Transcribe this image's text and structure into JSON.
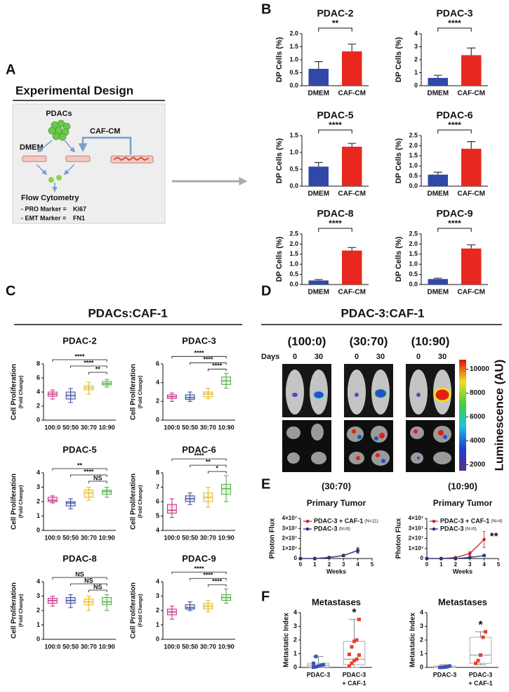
{
  "figure": {
    "panel_labels": [
      "A",
      "B",
      "C",
      "D",
      "E",
      "F"
    ],
    "panel_a": {
      "title": "Experimental Design",
      "pdacs": "PDACs",
      "dmem": "DMEM",
      "caf_cm": "CAF-CM",
      "flow": "Flow Cytometry",
      "markers": [
        {
          "label": "- PRO Marker = ",
          "value": "Ki67"
        },
        {
          "label": "- EMT Marker = ",
          "value": "FN1"
        }
      ]
    },
    "panel_c_title": "PDACs:CAF-1",
    "panel_d": {
      "title": "PDAC-3:CAF-1",
      "days_label": "Days",
      "groups": [
        {
          "label": "(100:0)",
          "days": [
            "0",
            "30"
          ]
        },
        {
          "label": "(30:70)",
          "days": [
            "0",
            "30"
          ]
        },
        {
          "label": "(10:90)",
          "days": [
            "0",
            "30"
          ]
        }
      ],
      "colorbar": {
        "label": "Luminescence (AU)",
        "lim": [
          1500,
          10800
        ],
        "ticks": [
          2000,
          4000,
          6000,
          8000,
          10000
        ]
      }
    }
  },
  "chart_data": [
    {
      "type": "bar",
      "title": "PDAC-2",
      "ylabel": "DP Cells (%)",
      "categories": [
        "DMEM",
        "CAF-CM"
      ],
      "values": [
        0.65,
        1.32
      ],
      "errors": [
        0.28,
        0.28
      ],
      "colors": [
        "#3048a8",
        "#e8281e"
      ],
      "ylim": [
        0,
        2
      ],
      "yticks": [
        {
          "value": 0,
          "label": "0.0"
        },
        {
          "value": 0.5,
          "label": "0.5"
        },
        {
          "value": 1,
          "label": "1.0"
        },
        {
          "value": 1.5,
          "label": "1.5"
        },
        {
          "value": 2,
          "label": "2.0"
        }
      ],
      "significance": "**"
    },
    {
      "type": "bar",
      "title": "PDAC-3",
      "ylabel": "DP Cells (%)",
      "categories": [
        "DMEM",
        "CAF-CM"
      ],
      "values": [
        0.6,
        2.35
      ],
      "errors": [
        0.2,
        0.55
      ],
      "colors": [
        "#3048a8",
        "#e8281e"
      ],
      "ylim": [
        0,
        4
      ],
      "yticks": [
        0,
        1,
        2,
        3,
        4
      ],
      "significance": "****"
    },
    {
      "type": "bar",
      "title": "PDAC-5",
      "ylabel": "DP Cells (%)",
      "categories": [
        "DMEM",
        "CAF-CM"
      ],
      "values": [
        0.58,
        1.17
      ],
      "errors": [
        0.12,
        0.1
      ],
      "colors": [
        "#3048a8",
        "#e8281e"
      ],
      "ylim": [
        0,
        1.5
      ],
      "yticks": [
        {
          "value": 0,
          "label": "0.0"
        },
        {
          "value": 0.5,
          "label": "0.5"
        },
        {
          "value": 1,
          "label": "1.0"
        },
        {
          "value": 1.5,
          "label": "1.5"
        }
      ],
      "significance": "****"
    },
    {
      "type": "bar",
      "title": "PDAC-6",
      "ylabel": "DP Cells (%)",
      "categories": [
        "DMEM",
        "CAF-CM"
      ],
      "values": [
        0.57,
        1.85
      ],
      "errors": [
        0.12,
        0.35
      ],
      "colors": [
        "#3048a8",
        "#e8281e"
      ],
      "ylim": [
        0,
        2.5
      ],
      "yticks": [
        {
          "value": 0,
          "label": "0.0"
        },
        {
          "value": 0.5,
          "label": "0.5"
        },
        {
          "value": 1,
          "label": "1.0"
        },
        {
          "value": 1.5,
          "label": "1.5"
        },
        {
          "value": 2,
          "label": "2.0"
        },
        {
          "value": 2.5,
          "label": "2.5"
        }
      ],
      "significance": "****"
    },
    {
      "type": "bar",
      "title": "PDAC-8",
      "ylabel": "DP Cells (%)",
      "categories": [
        "DMEM",
        "CAF-CM"
      ],
      "values": [
        0.2,
        1.68
      ],
      "errors": [
        0.05,
        0.15
      ],
      "colors": [
        "#3048a8",
        "#e8281e"
      ],
      "ylim": [
        0,
        2.5
      ],
      "yticks": [
        {
          "value": 0,
          "label": "0.0"
        },
        {
          "value": 0.5,
          "label": "0.5"
        },
        {
          "value": 1,
          "label": "1.0"
        },
        {
          "value": 1.5,
          "label": "1.5"
        },
        {
          "value": 2,
          "label": "2.0"
        },
        {
          "value": 2.5,
          "label": "2.5"
        }
      ],
      "significance": "****"
    },
    {
      "type": "bar",
      "title": "PDAC-9",
      "ylabel": "DP Cells (%)",
      "categories": [
        "DMEM",
        "CAF-CM"
      ],
      "values": [
        0.27,
        1.78
      ],
      "errors": [
        0.04,
        0.18
      ],
      "colors": [
        "#3048a8",
        "#e8281e"
      ],
      "ylim": [
        0,
        2.5
      ],
      "yticks": [
        {
          "value": 0,
          "label": "0.0"
        },
        {
          "value": 0.5,
          "label": "0.5"
        },
        {
          "value": 1,
          "label": "1.0"
        },
        {
          "value": 1.5,
          "label": "1.5"
        },
        {
          "value": 2,
          "label": "2.0"
        },
        {
          "value": 2.5,
          "label": "2.5"
        }
      ],
      "significance": "****"
    },
    {
      "type": "box",
      "title": "PDAC-2",
      "ylabel": "Cell Proliferation",
      "ylabel_sub": "(Fold Change)",
      "categories": [
        "100:0",
        "50:50",
        "30:70",
        "10:90"
      ],
      "colors": [
        "#c8287f",
        "#34479c",
        "#e3b81b",
        "#4cae3f"
      ],
      "ylim": [
        0,
        8
      ],
      "yticks": [
        0,
        2,
        4,
        6,
        8
      ],
      "boxes": [
        {
          "min": 3.0,
          "q1": 3.4,
          "median": 3.7,
          "q3": 4.0,
          "max": 4.3
        },
        {
          "min": 2.5,
          "q1": 3.0,
          "median": 3.5,
          "q3": 4.0,
          "max": 4.5
        },
        {
          "min": 3.7,
          "q1": 4.3,
          "median": 4.6,
          "q3": 4.9,
          "max": 5.4
        },
        {
          "min": 4.7,
          "q1": 5.0,
          "median": 5.2,
          "q3": 5.5,
          "max": 5.8
        }
      ],
      "comparisons": [
        "****",
        "****",
        "**"
      ]
    },
    {
      "type": "box",
      "title": "PDAC-3",
      "ylabel": "Cell Proliferation",
      "ylabel_sub": "(Fold Change)",
      "categories": [
        "100:0",
        "50:50",
        "30:70",
        "10:90"
      ],
      "colors": [
        "#c8287f",
        "#34479c",
        "#e3b81b",
        "#4cae3f"
      ],
      "ylim": [
        0,
        6
      ],
      "yticks": [
        0,
        2,
        4,
        6
      ],
      "boxes": [
        {
          "min": 2.0,
          "q1": 2.3,
          "median": 2.5,
          "q3": 2.7,
          "max": 2.9
        },
        {
          "min": 2.0,
          "q1": 2.2,
          "median": 2.4,
          "q3": 2.7,
          "max": 3.0
        },
        {
          "min": 2.3,
          "q1": 2.5,
          "median": 2.8,
          "q3": 3.0,
          "max": 3.4
        },
        {
          "min": 3.4,
          "q1": 3.8,
          "median": 4.2,
          "q3": 4.6,
          "max": 5.0
        }
      ],
      "comparisons": [
        "****",
        "****",
        "****"
      ]
    },
    {
      "type": "box",
      "title": "PDAC-5",
      "ylabel": "Cell Proliferation",
      "ylabel_sub": "(Fold Change)",
      "categories": [
        "100:0",
        "50:50",
        "30:70",
        "10:90"
      ],
      "colors": [
        "#c8287f",
        "#34479c",
        "#e3b81b",
        "#4cae3f"
      ],
      "ylim": [
        0,
        4
      ],
      "yticks": [
        0,
        1,
        2,
        3,
        4
      ],
      "boxes": [
        {
          "min": 1.9,
          "q1": 2.0,
          "median": 2.1,
          "q3": 2.3,
          "max": 2.4
        },
        {
          "min": 1.5,
          "q1": 1.7,
          "median": 1.9,
          "q3": 2.0,
          "max": 2.2
        },
        {
          "min": 2.1,
          "q1": 2.3,
          "median": 2.6,
          "q3": 2.8,
          "max": 3.0
        },
        {
          "min": 2.3,
          "q1": 2.5,
          "median": 2.7,
          "q3": 2.8,
          "max": 3.0
        }
      ],
      "comparisons": [
        "**",
        "****",
        "NS"
      ]
    },
    {
      "type": "box",
      "title": "PDAC-6",
      "ylabel": "Cell Proliferation",
      "ylabel_sub": "(Fold Change)",
      "categories": [
        "100:0",
        "50:50",
        "30:70",
        "10:90"
      ],
      "colors": [
        "#c8287f",
        "#34479c",
        "#e3b81b",
        "#4cae3f"
      ],
      "ylim": [
        4,
        8
      ],
      "yticks": [
        4,
        5,
        6,
        7,
        8
      ],
      "boxes": [
        {
          "min": 4.9,
          "q1": 5.2,
          "median": 5.4,
          "q3": 5.8,
          "max": 6.2
        },
        {
          "min": 5.8,
          "q1": 6.0,
          "median": 6.2,
          "q3": 6.4,
          "max": 6.6
        },
        {
          "min": 5.6,
          "q1": 6.0,
          "median": 6.3,
          "q3": 6.6,
          "max": 7.0
        },
        {
          "min": 6.0,
          "q1": 6.5,
          "median": 6.9,
          "q3": 7.2,
          "max": 7.8
        }
      ],
      "comparisons": [
        "****",
        "**",
        "*"
      ]
    },
    {
      "type": "box",
      "title": "PDAC-8",
      "ylabel": "Cell Proliferation",
      "ylabel_sub": "(Fold Change)",
      "categories": [
        "100:0",
        "50:50",
        "30:70",
        "10:90"
      ],
      "colors": [
        "#c8287f",
        "#34479c",
        "#e3b81b",
        "#4cae3f"
      ],
      "ylim": [
        0,
        4
      ],
      "yticks": [
        0,
        1,
        2,
        3,
        4
      ],
      "boxes": [
        {
          "min": 2.3,
          "q1": 2.5,
          "median": 2.7,
          "q3": 2.85,
          "max": 3.0
        },
        {
          "min": 2.2,
          "q1": 2.5,
          "median": 2.7,
          "q3": 2.9,
          "max": 3.1
        },
        {
          "min": 2.0,
          "q1": 2.4,
          "median": 2.6,
          "q3": 2.8,
          "max": 3.0
        },
        {
          "min": 2.0,
          "q1": 2.4,
          "median": 2.6,
          "q3": 2.9,
          "max": 3.1
        }
      ],
      "comparisons": [
        "NS",
        "NS",
        "NS"
      ]
    },
    {
      "type": "box",
      "title": "PDAC-9",
      "ylabel": "Cell Proliferation",
      "ylabel_sub": "(Fold Change)",
      "categories": [
        "100:0",
        "50:50",
        "30:70",
        "10:90"
      ],
      "colors": [
        "#c8287f",
        "#34479c",
        "#e3b81b",
        "#4cae3f"
      ],
      "ylim": [
        0,
        4
      ],
      "yticks": [
        0,
        1,
        2,
        3,
        4
      ],
      "boxes": [
        {
          "min": 1.4,
          "q1": 1.7,
          "median": 1.9,
          "q3": 2.1,
          "max": 2.3
        },
        {
          "min": 2.0,
          "q1": 2.1,
          "median": 2.2,
          "q3": 2.4,
          "max": 2.6
        },
        {
          "min": 1.9,
          "q1": 2.1,
          "median": 2.3,
          "q3": 2.5,
          "max": 2.7
        },
        {
          "min": 2.5,
          "q1": 2.7,
          "median": 2.9,
          "q3": 3.1,
          "max": 3.5
        }
      ],
      "comparisons": [
        "****",
        "****",
        "****"
      ]
    },
    {
      "type": "line",
      "title": "(30:70)",
      "subtitle": "Primary Tumor",
      "xlabel": "Weeks",
      "ylabel": "Photon Flux",
      "x": [
        0,
        1,
        2,
        3,
        4
      ],
      "xlim": [
        0,
        5
      ],
      "xticks": [
        0,
        1,
        2,
        3,
        4,
        5
      ],
      "ylim": [
        0,
        40000000
      ],
      "yticks": [
        0,
        {
          "value": 10000000,
          "label": "1×10⁷"
        },
        {
          "value": 20000000,
          "label": "2×10⁷"
        },
        {
          "value": 30000000,
          "label": "3×10⁷"
        },
        {
          "value": 40000000,
          "label": "4×10⁷"
        }
      ],
      "series": [
        {
          "name": "PDAC-3 + CAF-1",
          "n_label": "(N=11)",
          "color": "#c0262d",
          "values": [
            0,
            0,
            1000000,
            3000000,
            8000000
          ],
          "errors": [
            0,
            0,
            500000,
            1000000,
            3000000
          ]
        },
        {
          "name": "PDAC-3",
          "n_label": "(N=8)",
          "color": "#27336e",
          "values": [
            0,
            0,
            1000000,
            3000000,
            8000000
          ],
          "errors": [
            0,
            0,
            500000,
            1000000,
            2000000
          ]
        }
      ]
    },
    {
      "type": "line",
      "title": "(10:90)",
      "subtitle": "Primary Tumor",
      "xlabel": "Weeks",
      "ylabel": "Photon Flux",
      "x": [
        0,
        1,
        2,
        3,
        4
      ],
      "xlim": [
        0,
        5
      ],
      "xticks": [
        0,
        1,
        2,
        3,
        4,
        5
      ],
      "ylim": [
        0,
        40000000
      ],
      "yticks": [
        0,
        {
          "value": 10000000,
          "label": "1×10⁷"
        },
        {
          "value": 20000000,
          "label": "2×10⁷"
        },
        {
          "value": 30000000,
          "label": "3×10⁷"
        },
        {
          "value": 40000000,
          "label": "4×10⁷"
        }
      ],
      "series": [
        {
          "name": "PDAC-3 + CAF-1",
          "n_label": "(N=4)",
          "color": "#c0262d",
          "values": [
            0,
            0,
            1000000,
            5000000,
            19000000
          ],
          "errors": [
            0,
            0,
            500000,
            2000000,
            8000000
          ]
        },
        {
          "name": "PDAC-3",
          "n_label": "(N=6)",
          "color": "#27336e",
          "values": [
            0,
            0,
            0,
            1000000,
            3000000
          ],
          "errors": [
            0,
            0,
            0,
            500000,
            1000000
          ]
        }
      ],
      "annotation": "**"
    },
    {
      "type": "box",
      "title": "Metastases",
      "ylabel": "Metastatic Index",
      "categories": [
        [
          "PDAC-3"
        ],
        [
          "PDAC-3",
          "+ CAF-1"
        ]
      ],
      "colors": [
        "#3a55b0",
        "#e8402a"
      ],
      "ylim": [
        0,
        4
      ],
      "yticks": [
        0,
        1,
        2,
        3,
        4
      ],
      "boxes": [
        {
          "min": 0,
          "q1": 0.02,
          "median": 0.15,
          "q3": 0.3,
          "max": 0.8
        },
        {
          "min": 0,
          "q1": 0.2,
          "median": 0.6,
          "q3": 1.9,
          "max": 3.5
        }
      ],
      "points": [
        [
          0.02,
          0.05,
          0.1,
          0.15,
          0.2,
          0.3,
          0.8
        ],
        [
          0.1,
          0.3,
          0.5,
          0.6,
          0.9,
          0.95,
          1.5,
          1.9,
          2.0,
          3.5
        ]
      ],
      "annotation": "*"
    },
    {
      "type": "box",
      "title": "Metastases",
      "ylabel": "Metastatic Index",
      "categories": [
        [
          "PDAC-3"
        ],
        [
          "PDAC-3",
          "+ CAF-1"
        ]
      ],
      "colors": [
        "#3a55b0",
        "#e8402a"
      ],
      "ylim": [
        0,
        4
      ],
      "yticks": [
        0,
        1,
        2,
        3,
        4
      ],
      "boxes": [
        {
          "min": 0,
          "q1": 0,
          "median": 0.02,
          "q3": 0.1,
          "max": 0.2
        },
        {
          "min": 0.2,
          "q1": 0.3,
          "median": 0.9,
          "q3": 2.2,
          "max": 2.6
        }
      ],
      "points": [
        [
          0,
          0.01,
          0.02,
          0.05,
          0.1
        ],
        [
          0.3,
          0.5,
          0.9,
          2.2,
          2.6
        ]
      ],
      "annotation": "*"
    }
  ]
}
